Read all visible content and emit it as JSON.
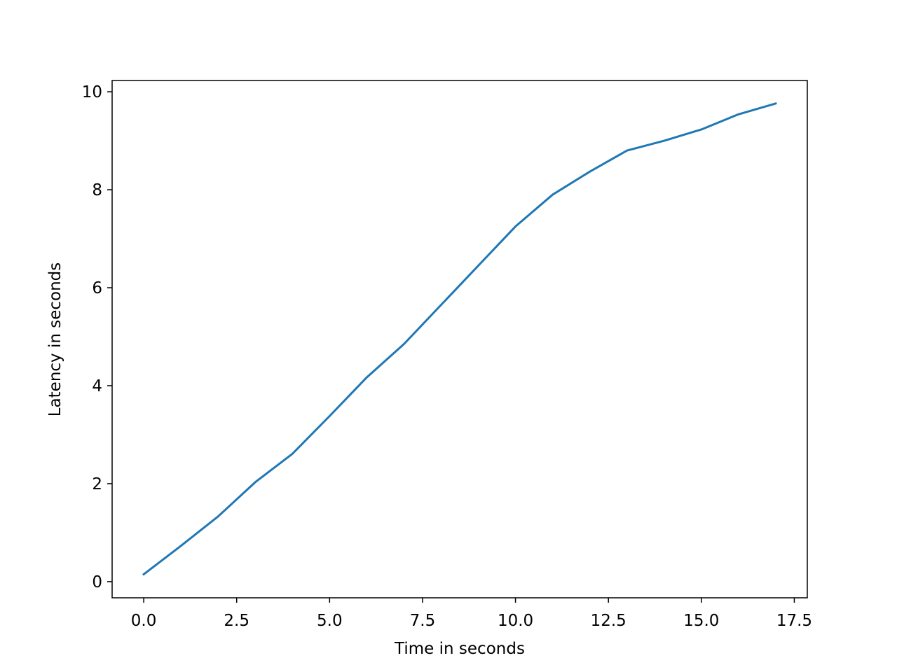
{
  "chart_data": {
    "type": "line",
    "xlabel": "Time in seconds",
    "ylabel": "Latency in seconds",
    "x": [
      0,
      1,
      2,
      3,
      4,
      5,
      6,
      7,
      8,
      9,
      10,
      11,
      12,
      13,
      14,
      15,
      16,
      17
    ],
    "series": [
      {
        "color": "#1f77b4",
        "values": [
          0.15,
          0.73,
          1.33,
          2.03,
          2.61,
          3.38,
          4.17,
          4.85,
          5.65,
          6.45,
          7.25,
          7.9,
          8.37,
          8.8,
          9.0,
          9.23,
          9.54,
          9.76
        ]
      }
    ],
    "xlim": [
      -0.85,
      17.85
    ],
    "ylim": [
      -0.33,
      10.23
    ],
    "xticks": [
      {
        "value": 0,
        "label": "0.0"
      },
      {
        "value": 2.5,
        "label": "2.5"
      },
      {
        "value": 5,
        "label": "5.0"
      },
      {
        "value": 7.5,
        "label": "7.5"
      },
      {
        "value": 10,
        "label": "10.0"
      },
      {
        "value": 12.5,
        "label": "12.5"
      },
      {
        "value": 15,
        "label": "15.0"
      },
      {
        "value": 17.5,
        "label": "17.5"
      }
    ],
    "yticks": [
      0,
      2,
      4,
      6,
      8,
      10
    ],
    "grid": false
  }
}
